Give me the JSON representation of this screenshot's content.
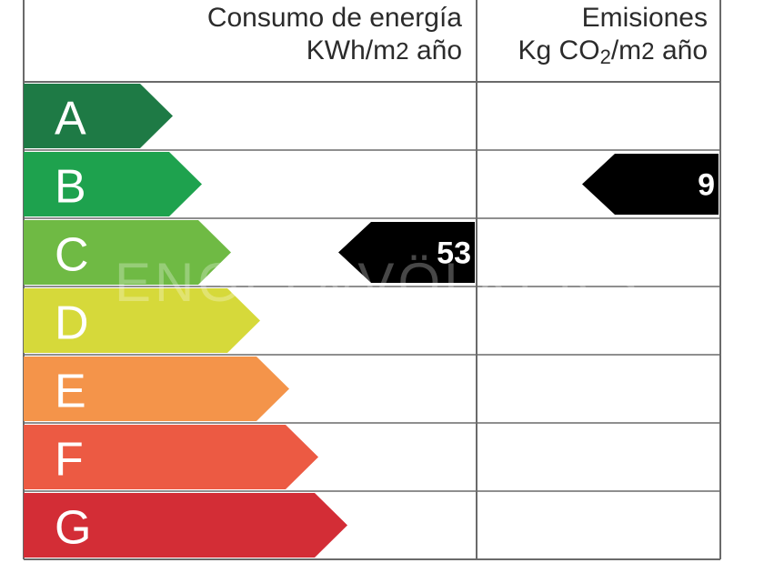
{
  "header": {
    "energy_title": "Consumo de energía",
    "energy_unit_pre": "KWh/m",
    "energy_unit_sup": "2",
    "energy_unit_post": " año",
    "emissions_title": "Emisiones",
    "emissions_unit_pre": "Kg CO",
    "emissions_unit_sub": "2",
    "emissions_unit_mid": "/m",
    "emissions_unit_sup": "2",
    "emissions_unit_post": " año"
  },
  "ratings": [
    {
      "letter": "A",
      "color": "#1e7a45"
    },
    {
      "letter": "B",
      "color": "#1ea24e"
    },
    {
      "letter": "C",
      "color": "#6fba44"
    },
    {
      "letter": "D",
      "color": "#d6d93a"
    },
    {
      "letter": "E",
      "color": "#f4944a"
    },
    {
      "letter": "F",
      "color": "#ec5a43"
    },
    {
      "letter": "G",
      "color": "#d32d36"
    }
  ],
  "energy_indicator": {
    "value": "53",
    "rating": "C"
  },
  "emissions_indicator": {
    "value": "9",
    "rating": "B"
  },
  "watermark": "ENGEL&VÖLKERS"
}
